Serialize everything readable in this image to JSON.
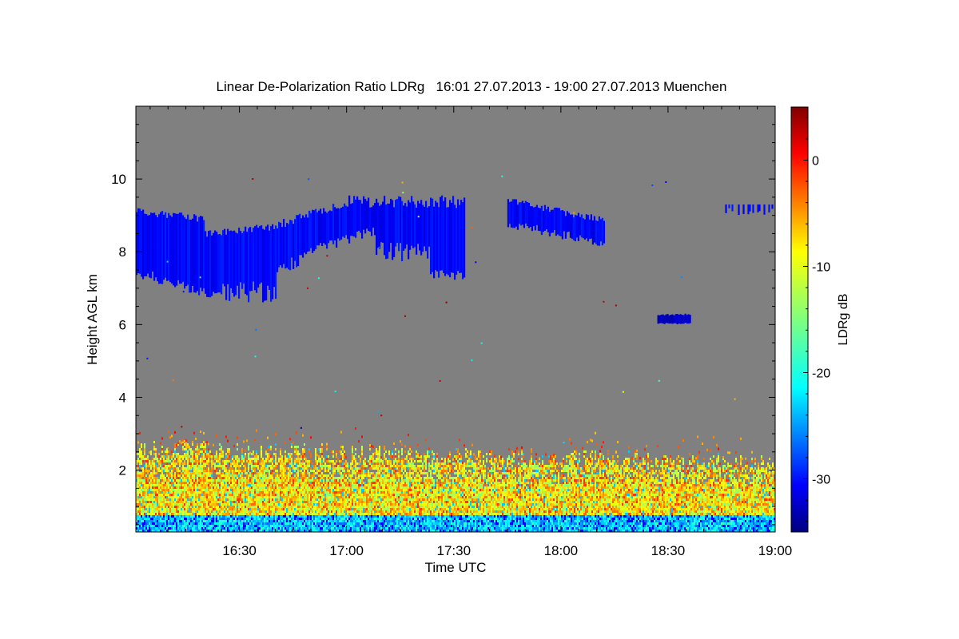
{
  "chart_data": {
    "type": "heatmap",
    "title": "Linear De-Polarization Ratio LDRg   16:01 27.07.2013 - 19:00 27.07.2013 Muenchen",
    "xlabel": "Time UTC",
    "ylabel": "Height AGL km",
    "xlim_minutes_utc": [
      961,
      1140
    ],
    "ylim_km": [
      0.3,
      12.0
    ],
    "x_ticks": [
      {
        "minutes": 990,
        "label": "16:30"
      },
      {
        "minutes": 1020,
        "label": "17:00"
      },
      {
        "minutes": 1050,
        "label": "17:30"
      },
      {
        "minutes": 1080,
        "label": "18:00"
      },
      {
        "minutes": 1110,
        "label": "18:30"
      },
      {
        "minutes": 1140,
        "label": "19:00"
      }
    ],
    "y_ticks": [
      {
        "value": 2,
        "label": "2"
      },
      {
        "value": 4,
        "label": "4"
      },
      {
        "value": 6,
        "label": "6"
      },
      {
        "value": 8,
        "label": "8"
      },
      {
        "value": 10,
        "label": "10"
      }
    ],
    "colorbar": {
      "label": "LDRg dB",
      "range_db": [
        -35,
        5
      ],
      "ticks": [
        {
          "value": 0,
          "label": "0"
        },
        {
          "value": -10,
          "label": "-10"
        },
        {
          "value": -20,
          "label": "-20"
        },
        {
          "value": -30,
          "label": "-30"
        }
      ]
    },
    "no_signal_color": "#808080",
    "features": [
      {
        "name": "cirrus cloud",
        "time_range": [
          "16:01",
          "17:36"
        ],
        "height_km": [
          6.6,
          9.7
        ],
        "ldr_db": -30
      },
      {
        "name": "cirrus cloud",
        "time_range": [
          "17:45",
          "18:12"
        ],
        "height_km": [
          8.6,
          9.5
        ],
        "ldr_db": -30
      },
      {
        "name": "cloud patch",
        "time_range": [
          "18:27",
          "18:36"
        ],
        "height_km": [
          6.0,
          6.3
        ],
        "ldr_db": -32
      },
      {
        "name": "cloud traces",
        "time_range": [
          "18:46",
          "18:59"
        ],
        "height_km": [
          8.7,
          9.4
        ],
        "ldr_db": -30
      },
      {
        "name": "boundary layer aerosol",
        "time_range": [
          "16:01",
          "19:00"
        ],
        "height_km": [
          0.3,
          2.9
        ],
        "ldr_db": -10
      },
      {
        "name": "near-surface layer",
        "time_range": [
          "16:01",
          "19:00"
        ],
        "height_km": [
          0.3,
          0.7
        ],
        "ldr_db": -22
      }
    ]
  }
}
